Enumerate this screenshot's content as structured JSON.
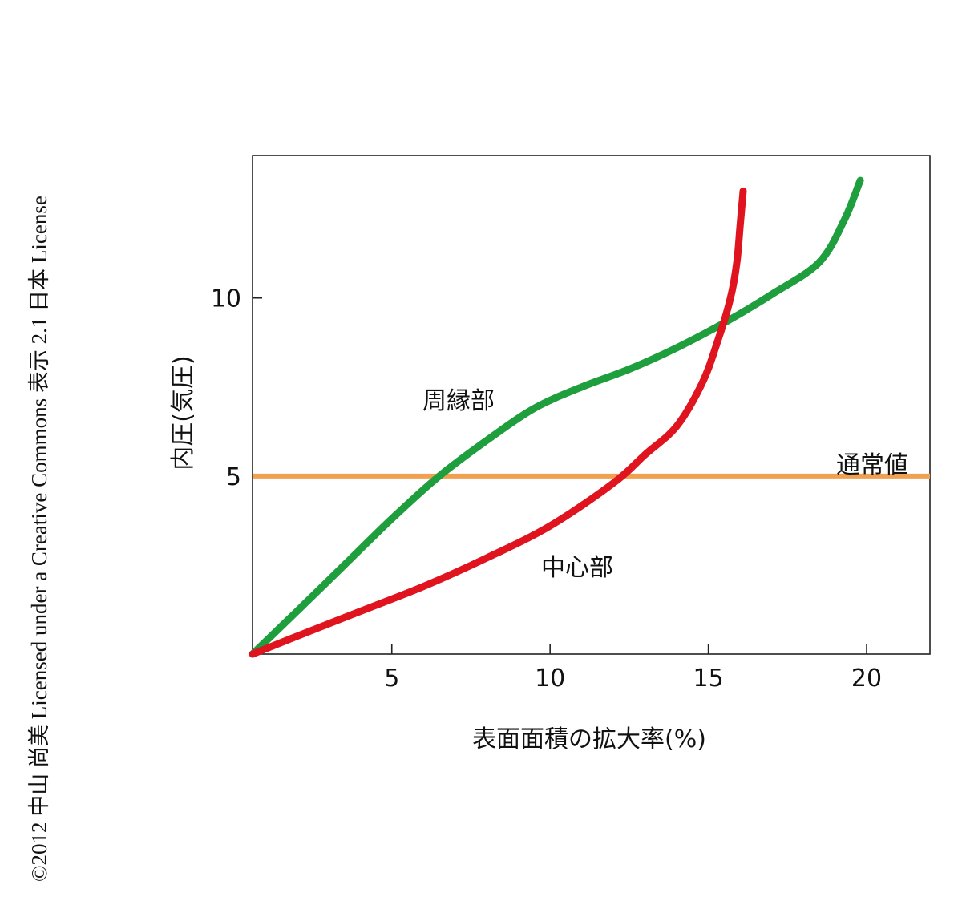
{
  "credit": "©2012 中山 尚美 Licensed under a Creative Commons 表示 2.1 日本 License",
  "chart_data": {
    "type": "line",
    "xlabel": "表面面積の拡大率(%)",
    "ylabel": "内圧(気圧)",
    "xlim": [
      0.6,
      22
    ],
    "ylim": [
      0,
      14
    ],
    "x_ticks": [
      5,
      10,
      15,
      20
    ],
    "x_tick_labels": [
      "5",
      "10",
      "15",
      "20"
    ],
    "y_ticks": [
      5,
      10
    ],
    "y_tick_labels": [
      "5",
      "10"
    ],
    "grid": false,
    "series": [
      {
        "name": "周縁部",
        "color": "#1e9e3c",
        "x": [
          0.6,
          2,
          3.5,
          5,
          6.5,
          8,
          9.5,
          11,
          12.5,
          14,
          15.5,
          17,
          18.5,
          19.3,
          19.8
        ],
        "y": [
          0,
          1.2,
          2.5,
          3.8,
          5.0,
          6.0,
          6.9,
          7.5,
          8.0,
          8.6,
          9.3,
          10.1,
          11.0,
          12.2,
          13.3
        ]
      },
      {
        "name": "中心部",
        "color": "#e0141e",
        "x": [
          0.6,
          2,
          4,
          6,
          8,
          10,
          12,
          13,
          14,
          14.8,
          15.3,
          15.7,
          15.9,
          16.0,
          16.1
        ],
        "y": [
          0,
          0.5,
          1.2,
          1.9,
          2.7,
          3.6,
          4.8,
          5.6,
          6.4,
          7.6,
          8.8,
          10.0,
          11.0,
          12.0,
          13.0
        ]
      },
      {
        "name": "通常値",
        "color": "#f0a050",
        "x": [
          0.6,
          22
        ],
        "y": [
          5,
          5
        ]
      }
    ]
  }
}
